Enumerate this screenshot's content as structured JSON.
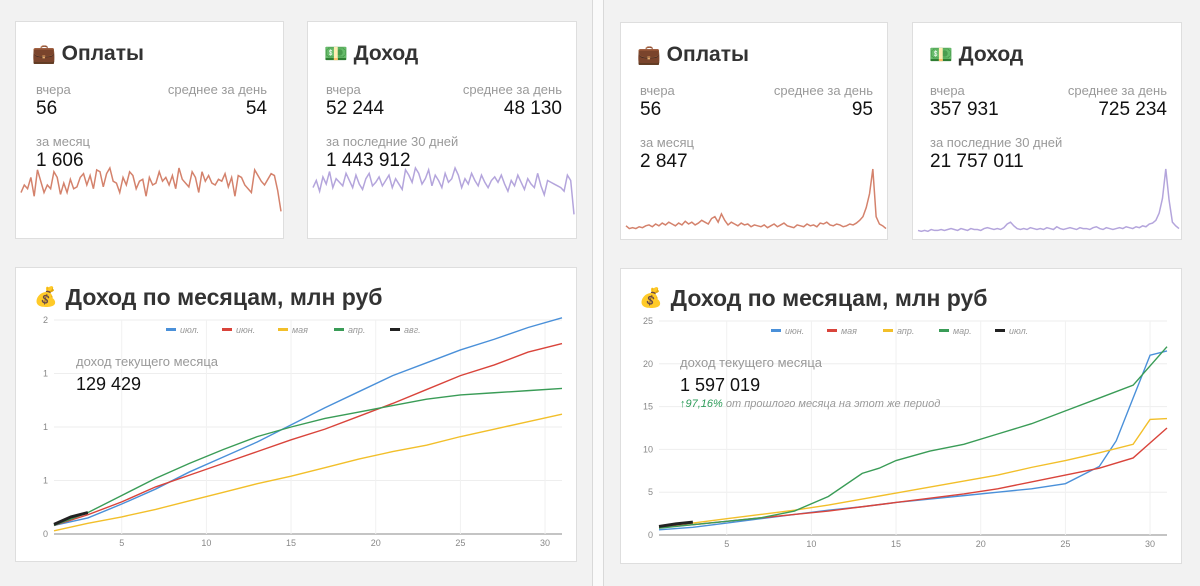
{
  "left": {
    "payments": {
      "title": "Оплаты",
      "icon": "briefcase-icon",
      "yesterday_label": "вчера",
      "yesterday_value": "56",
      "avg_label": "среднее за день",
      "avg_value": "54",
      "month_label": "за месяц",
      "month_value": "1 606",
      "spark_color": "#d4826c",
      "spark": [
        22,
        26,
        24,
        30,
        20,
        34,
        28,
        22,
        26,
        24,
        33,
        30,
        21,
        27,
        22,
        29,
        24,
        25,
        30,
        32,
        26,
        31,
        24,
        34,
        33,
        25,
        32,
        35,
        28,
        27,
        22,
        30,
        26,
        33,
        31,
        24,
        28,
        29,
        20,
        30,
        26,
        27,
        33,
        28,
        30,
        26,
        31,
        24,
        35,
        29,
        27,
        25,
        33,
        30,
        22,
        33,
        28,
        31,
        27,
        26,
        29,
        28,
        32,
        25,
        30,
        20,
        31,
        30,
        26,
        24,
        22,
        34,
        31,
        28,
        26,
        29,
        32,
        31,
        23,
        12
      ]
    },
    "income": {
      "title": "Доход",
      "icon": "money-icon",
      "yesterday_label": "вчера",
      "yesterday_value": "52 244",
      "avg_label": "среднее за день",
      "avg_value": "48 130",
      "month_label": "за последние 30 дней",
      "month_value": "1 443 912",
      "spark_color": "#b4a5dc",
      "spark": [
        26,
        30,
        24,
        32,
        28,
        35,
        26,
        31,
        29,
        27,
        34,
        30,
        26,
        33,
        28,
        25,
        31,
        34,
        27,
        29,
        32,
        27,
        30,
        33,
        26,
        31,
        28,
        25,
        36,
        33,
        29,
        37,
        34,
        28,
        31,
        36,
        27,
        33,
        30,
        26,
        34,
        29,
        31,
        37,
        33,
        26,
        31,
        28,
        34,
        30,
        27,
        33,
        29,
        26,
        30,
        32,
        29,
        33,
        28,
        24,
        30,
        27,
        33,
        29,
        25,
        31,
        28,
        26,
        34,
        27,
        22,
        30,
        29,
        28,
        27,
        26,
        24,
        33,
        30,
        11
      ]
    },
    "monthly": {
      "title": "Доход по месяцам, млн руб",
      "icon": "money-bag-icon",
      "current_label": "доход текущего месяца",
      "current_value": "129 429",
      "delta_pct": "",
      "delta_text": ""
    }
  },
  "right": {
    "payments": {
      "title": "Оплаты",
      "icon": "briefcase-icon",
      "yesterday_label": "вчера",
      "yesterday_value": "56",
      "avg_label": "среднее за день",
      "avg_value": "95",
      "month_label": "за месяц",
      "month_value": "2 847",
      "spark_color": "#d4826c",
      "spark": [
        10,
        7,
        8,
        7,
        9,
        8,
        10,
        11,
        9,
        12,
        10,
        13,
        11,
        14,
        12,
        10,
        13,
        11,
        15,
        12,
        14,
        11,
        13,
        16,
        14,
        12,
        18,
        20,
        14,
        23,
        16,
        11,
        14,
        12,
        10,
        13,
        11,
        12,
        9,
        11,
        10,
        9,
        11,
        8,
        10,
        12,
        9,
        11,
        13,
        10,
        9,
        8,
        11,
        10,
        9,
        12,
        10,
        11,
        9,
        13,
        12,
        14,
        11,
        10,
        12,
        11,
        9,
        10,
        12,
        11,
        13,
        16,
        20,
        30,
        45,
        72,
        20,
        12,
        10,
        7
      ]
    },
    "income": {
      "title": "Доход",
      "icon": "money-icon",
      "yesterday_label": "вчера",
      "yesterday_value": "357 931",
      "avg_label": "среднее за день",
      "avg_value": "725 234",
      "month_label": "за последние 30 дней",
      "month_value": "21 757 011",
      "spark_color": "#b4a5dc",
      "spark": [
        5,
        4,
        5,
        4,
        6,
        5,
        5,
        6,
        5,
        6,
        7,
        6,
        5,
        7,
        6,
        5,
        7,
        6,
        6,
        5,
        7,
        8,
        7,
        6,
        7,
        6,
        8,
        12,
        14,
        10,
        7,
        6,
        7,
        6,
        8,
        7,
        6,
        7,
        6,
        8,
        7,
        6,
        9,
        7,
        6,
        7,
        8,
        7,
        6,
        8,
        7,
        7,
        6,
        8,
        9,
        7,
        6,
        8,
        7,
        6,
        7,
        8,
        7,
        9,
        8,
        7,
        9,
        8,
        10,
        9,
        12,
        13,
        16,
        24,
        40,
        72,
        38,
        14,
        10,
        7
      ]
    },
    "monthly": {
      "title": "Доход по месяцам, млн руб",
      "icon": "money-bag-icon",
      "current_label": "доход текущего месяца",
      "current_value": "1 597 019",
      "delta_pct": "↑97,16%",
      "delta_text": "от прошлого месяца на этот же период"
    }
  },
  "chart_data": [
    {
      "type": "line",
      "title": "Доход по месяцам, млн руб",
      "xlim": [
        1,
        31
      ],
      "ylim": [
        0,
        2
      ],
      "x_ticks": [
        5,
        10,
        15,
        20,
        25,
        30
      ],
      "y_ticks": [
        0,
        0.5,
        1,
        1.5,
        2
      ],
      "y_tick_labels": [
        "0",
        "1",
        "1",
        "1",
        "2"
      ],
      "legend_position": "top",
      "grid": true,
      "series": [
        {
          "name": "июл.",
          "color": "#4a90d9",
          "x": [
            1,
            3,
            5,
            7,
            9,
            11,
            13,
            15,
            17,
            19,
            21,
            23,
            25,
            27,
            29,
            31
          ],
          "y": [
            0.08,
            0.15,
            0.28,
            0.42,
            0.58,
            0.72,
            0.86,
            1.02,
            1.18,
            1.33,
            1.48,
            1.6,
            1.72,
            1.82,
            1.93,
            2.02
          ]
        },
        {
          "name": "июн.",
          "color": "#d9443b",
          "x": [
            1,
            3,
            5,
            7,
            9,
            11,
            13,
            15,
            17,
            19,
            21,
            23,
            25,
            27,
            29,
            31
          ],
          "y": [
            0.08,
            0.18,
            0.3,
            0.44,
            0.55,
            0.66,
            0.77,
            0.88,
            0.98,
            1.1,
            1.22,
            1.35,
            1.48,
            1.58,
            1.7,
            1.78
          ]
        },
        {
          "name": "мая",
          "color": "#f2bf2a",
          "x": [
            1,
            3,
            5,
            7,
            9,
            11,
            13,
            15,
            17,
            19,
            21,
            23,
            25,
            27,
            29,
            31
          ],
          "y": [
            0.03,
            0.1,
            0.16,
            0.23,
            0.31,
            0.39,
            0.47,
            0.54,
            0.62,
            0.7,
            0.77,
            0.83,
            0.91,
            0.98,
            1.05,
            1.12
          ]
        },
        {
          "name": "апр.",
          "color": "#3a9c57",
          "x": [
            1,
            3,
            5,
            7,
            9,
            11,
            13,
            15,
            17,
            19,
            21,
            23,
            25,
            27,
            29,
            31
          ],
          "y": [
            0.08,
            0.2,
            0.36,
            0.52,
            0.66,
            0.79,
            0.91,
            1.0,
            1.08,
            1.14,
            1.2,
            1.26,
            1.3,
            1.32,
            1.34,
            1.36
          ]
        },
        {
          "name": "авг.",
          "color": "#222222",
          "x": [
            1,
            2,
            3
          ],
          "y": [
            0.09,
            0.16,
            0.2
          ]
        }
      ]
    },
    {
      "type": "line",
      "title": "Доход по месяцам, млн руб",
      "xlim": [
        1,
        31
      ],
      "ylim": [
        0,
        25
      ],
      "x_ticks": [
        5,
        10,
        15,
        20,
        25,
        30
      ],
      "y_ticks": [
        0,
        5,
        10,
        15,
        20,
        25
      ],
      "y_tick_labels": [
        "0",
        "5",
        "10",
        "15",
        "20",
        "25"
      ],
      "legend_position": "top",
      "grid": true,
      "series": [
        {
          "name": "июн.",
          "color": "#4a90d9",
          "x": [
            1,
            3,
            5,
            7,
            9,
            11,
            13,
            15,
            17,
            19,
            21,
            23,
            25,
            27,
            28,
            29,
            30,
            31
          ],
          "y": [
            0.6,
            0.9,
            1.4,
            1.9,
            2.4,
            2.9,
            3.3,
            3.8,
            4.2,
            4.6,
            5.0,
            5.4,
            6.0,
            8.0,
            11.0,
            16.0,
            21.0,
            21.5
          ]
        },
        {
          "name": "мая",
          "color": "#d9443b",
          "x": [
            1,
            3,
            5,
            7,
            9,
            11,
            13,
            15,
            17,
            19,
            21,
            23,
            25,
            27,
            29,
            31
          ],
          "y": [
            0.9,
            1.2,
            1.6,
            2.0,
            2.4,
            2.8,
            3.3,
            3.8,
            4.3,
            4.8,
            5.4,
            6.2,
            7.0,
            7.8,
            9.0,
            12.5
          ]
        },
        {
          "name": "апр.",
          "color": "#f2bf2a",
          "x": [
            1,
            3,
            5,
            7,
            9,
            11,
            13,
            15,
            17,
            19,
            21,
            23,
            25,
            27,
            29,
            30,
            31
          ],
          "y": [
            1.0,
            1.4,
            1.9,
            2.4,
            2.9,
            3.5,
            4.2,
            4.9,
            5.6,
            6.3,
            7.0,
            7.9,
            8.7,
            9.6,
            10.6,
            13.5,
            13.6
          ]
        },
        {
          "name": "мар.",
          "color": "#3a9c57",
          "x": [
            1,
            3,
            5,
            7,
            9,
            11,
            13,
            14,
            15,
            17,
            19,
            21,
            23,
            25,
            27,
            29,
            31
          ],
          "y": [
            0.8,
            1.2,
            1.6,
            2.0,
            2.8,
            4.5,
            7.2,
            7.8,
            8.7,
            9.8,
            10.6,
            11.8,
            13.0,
            14.5,
            16.0,
            17.5,
            22.0
          ]
        },
        {
          "name": "июл.",
          "color": "#222222",
          "x": [
            1,
            2,
            3
          ],
          "y": [
            1.0,
            1.3,
            1.5
          ]
        }
      ]
    }
  ]
}
